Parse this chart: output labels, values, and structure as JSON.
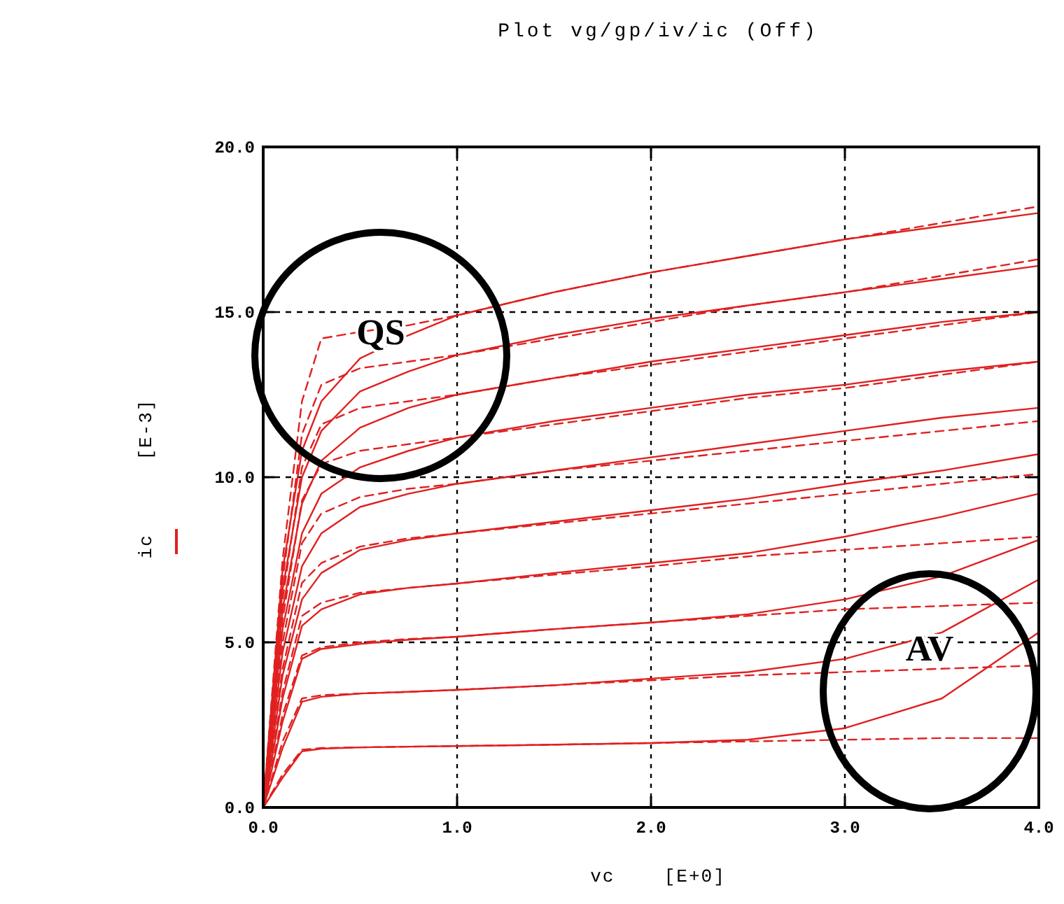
{
  "chart_data": {
    "type": "line",
    "title": "Plot vg/gp/iv/ic (Off)",
    "xlabel": "vc [E+0]",
    "ylabel": "ic [E-3]",
    "xlim": [
      0,
      4
    ],
    "ylim": [
      0,
      20
    ],
    "xticks": [
      {
        "value": 0,
        "label": "0.0"
      },
      {
        "value": 1,
        "label": "1.0"
      },
      {
        "value": 2,
        "label": "2.0"
      },
      {
        "value": 3,
        "label": "3.0"
      },
      {
        "value": 4,
        "label": "4.0"
      }
    ],
    "yticks": [
      {
        "value": 0,
        "label": "0.0"
      },
      {
        "value": 5,
        "label": "5.0"
      },
      {
        "value": 10,
        "label": "10.0"
      },
      {
        "value": 15,
        "label": "15.0"
      },
      {
        "value": 20,
        "label": "20.0"
      }
    ],
    "grid": true,
    "annotations": [
      "QS",
      "AV"
    ],
    "x": [
      0,
      0.1,
      0.2,
      0.3,
      0.5,
      0.75,
      1,
      1.5,
      2,
      2.5,
      3,
      3.5,
      4
    ],
    "series": [
      {
        "color": "#e02020",
        "line_style": "solid",
        "values": [
          0,
          0.9,
          1.7,
          1.78,
          1.82,
          1.84,
          1.86,
          1.9,
          1.95,
          2.05,
          2.4,
          3.3,
          5.3
        ]
      },
      {
        "color": "#e02020",
        "line_style": "dashed",
        "values": [
          0,
          1.0,
          1.75,
          1.8,
          1.82,
          1.84,
          1.86,
          1.9,
          1.95,
          2.0,
          2.05,
          2.1,
          2.1
        ]
      },
      {
        "color": "#e02020",
        "line_style": "solid",
        "values": [
          0,
          1.8,
          3.2,
          3.35,
          3.45,
          3.5,
          3.56,
          3.7,
          3.9,
          4.1,
          4.5,
          5.3,
          6.9
        ]
      },
      {
        "color": "#e02020",
        "line_style": "dashed",
        "values": [
          0,
          2.0,
          3.3,
          3.4,
          3.45,
          3.5,
          3.56,
          3.7,
          3.85,
          4.0,
          4.1,
          4.2,
          4.3
        ]
      },
      {
        "color": "#e02020",
        "line_style": "solid",
        "values": [
          0,
          2.6,
          4.5,
          4.8,
          4.95,
          5.08,
          5.17,
          5.4,
          5.6,
          5.85,
          6.3,
          7.0,
          8.1
        ]
      },
      {
        "color": "#e02020",
        "line_style": "dashed",
        "values": [
          0,
          2.8,
          4.6,
          4.85,
          5.0,
          5.1,
          5.17,
          5.4,
          5.6,
          5.8,
          6.0,
          6.1,
          6.2
        ]
      },
      {
        "color": "#e02020",
        "line_style": "solid",
        "values": [
          0,
          3.3,
          5.5,
          6.0,
          6.45,
          6.65,
          6.78,
          7.1,
          7.4,
          7.7,
          8.2,
          8.8,
          9.5
        ]
      },
      {
        "color": "#e02020",
        "line_style": "dashed",
        "values": [
          0,
          3.5,
          5.8,
          6.2,
          6.5,
          6.65,
          6.78,
          7.05,
          7.3,
          7.6,
          7.8,
          8.0,
          8.2
        ]
      },
      {
        "color": "#e02020",
        "line_style": "solid",
        "values": [
          0,
          4.0,
          6.3,
          7.1,
          7.8,
          8.1,
          8.3,
          8.65,
          9.0,
          9.35,
          9.8,
          10.2,
          10.7
        ]
      },
      {
        "color": "#e02020",
        "line_style": "dashed",
        "values": [
          0,
          4.2,
          6.8,
          7.4,
          7.9,
          8.15,
          8.3,
          8.6,
          8.9,
          9.2,
          9.5,
          9.8,
          10.1
        ]
      },
      {
        "color": "#e02020",
        "line_style": "solid",
        "values": [
          0,
          4.7,
          7.3,
          8.3,
          9.1,
          9.5,
          9.8,
          10.2,
          10.6,
          11.0,
          11.4,
          11.8,
          12.1
        ]
      },
      {
        "color": "#e02020",
        "line_style": "dashed",
        "values": [
          0,
          5.0,
          8.0,
          8.9,
          9.4,
          9.65,
          9.8,
          10.2,
          10.5,
          10.8,
          11.1,
          11.4,
          11.7
        ]
      },
      {
        "color": "#e02020",
        "line_style": "solid",
        "values": [
          0,
          5.4,
          8.3,
          9.5,
          10.3,
          10.8,
          11.2,
          11.7,
          12.1,
          12.5,
          12.8,
          13.2,
          13.5
        ]
      },
      {
        "color": "#e02020",
        "line_style": "dashed",
        "values": [
          0,
          5.7,
          9.3,
          10.4,
          10.8,
          11.0,
          11.2,
          11.6,
          12.0,
          12.4,
          12.7,
          13.1,
          13.5
        ]
      },
      {
        "color": "#e02020",
        "line_style": "solid",
        "values": [
          0,
          6.0,
          9.2,
          10.5,
          11.5,
          12.1,
          12.5,
          13.0,
          13.5,
          13.9,
          14.3,
          14.7,
          15.0
        ]
      },
      {
        "color": "#e02020",
        "line_style": "dashed",
        "values": [
          0,
          6.3,
          10.3,
          11.6,
          12.1,
          12.3,
          12.5,
          13.0,
          13.4,
          13.8,
          14.2,
          14.6,
          15.0
        ]
      },
      {
        "color": "#e02020",
        "line_style": "solid",
        "values": [
          0,
          6.6,
          10.0,
          11.4,
          12.6,
          13.2,
          13.7,
          14.3,
          14.8,
          15.2,
          15.6,
          16.0,
          16.4
        ]
      },
      {
        "color": "#e02020",
        "line_style": "dashed",
        "values": [
          0,
          6.9,
          11.3,
          12.8,
          13.3,
          13.5,
          13.7,
          14.2,
          14.7,
          15.2,
          15.6,
          16.1,
          16.6
        ]
      },
      {
        "color": "#e02020",
        "line_style": "solid",
        "values": [
          0,
          7.2,
          10.8,
          12.3,
          13.6,
          14.3,
          14.9,
          15.6,
          16.2,
          16.7,
          17.2,
          17.6,
          18.0
        ]
      },
      {
        "color": "#e02020",
        "line_style": "dashed",
        "values": [
          0,
          7.5,
          12.3,
          14.2,
          14.4,
          14.6,
          14.9,
          15.6,
          16.2,
          16.7,
          17.2,
          17.7,
          18.2
        ]
      }
    ]
  }
}
